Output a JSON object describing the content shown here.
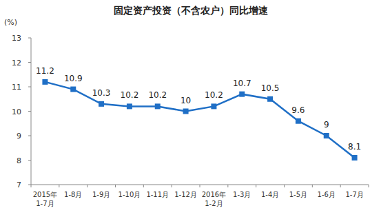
{
  "chart_data": {
    "type": "line",
    "title": "固定资产投资（不含农户）同比增速",
    "y_label": "(%)",
    "categories": [
      "2015年\n1-7月",
      "1-8月",
      "1-9月",
      "1-10月",
      "1-11月",
      "1-12月",
      "2016年\n1-2月",
      "1-3月",
      "1-4月",
      "1-5月",
      "1-6月",
      "1-7月"
    ],
    "values": [
      11.2,
      10.9,
      10.3,
      10.2,
      10.2,
      10.0,
      10.2,
      10.7,
      10.5,
      9.6,
      9.0,
      8.1
    ],
    "color": "#1f6fc6",
    "marker": "square",
    "line_style": "solid",
    "ylim": [
      7,
      13
    ],
    "yticks": [
      7,
      8,
      9,
      10,
      11,
      12,
      13
    ],
    "grid": false,
    "data_labels": true
  }
}
